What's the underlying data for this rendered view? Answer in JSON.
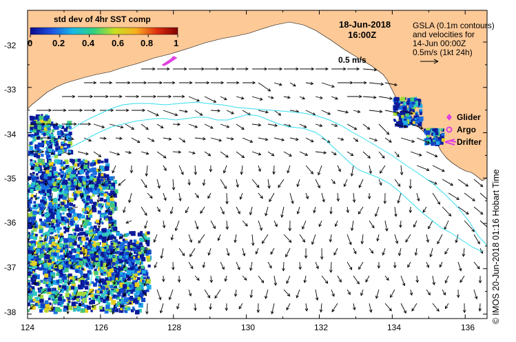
{
  "map": {
    "datetime_line1": "18-Jun-2018",
    "datetime_line2": "16:00Z",
    "gsla_line1": "GSLA (0.1m contours)",
    "gsla_line2": "and velocities for",
    "gsla_line3": "14-Jun 00:00Z",
    "gsla_line4": "0.5m/s (1kt 24h)",
    "velocity_scale_label": "0.5 m/s",
    "credit": "© IMOS 20-Jun-2018 01:16 Hobart Time",
    "colors": {
      "land": "#FDC997",
      "contour": "#33DDEE",
      "marker": "#E040E0",
      "vector": "#000000"
    },
    "extent": {
      "lon_min": 124,
      "lon_max": 136.6,
      "lat_min": -38.1,
      "lat_max": -31.3
    }
  },
  "colorbar": {
    "title": "std dev of 4hr SST comp",
    "ticks": [
      "0",
      "0.2",
      "0.4",
      "0.6",
      "0.8",
      "1"
    ],
    "stops": [
      "#0a0a90",
      "#1e50e0",
      "#18b8e8",
      "#30d080",
      "#c8e020",
      "#f8b020",
      "#e03010",
      "#800000"
    ]
  },
  "legend": {
    "items": [
      {
        "label": "Glider",
        "icon": "diamond-icon"
      },
      {
        "label": "Argo",
        "icon": "circle-icon"
      },
      {
        "label": "Drifter",
        "icon": "drifter-icon"
      }
    ]
  },
  "axes": {
    "x_ticks": [
      "124",
      "126",
      "128",
      "130",
      "132",
      "134",
      "136"
    ],
    "y_ticks": [
      "-32",
      "-33",
      "-34",
      "-35",
      "-36",
      "-37",
      "-38"
    ]
  }
}
